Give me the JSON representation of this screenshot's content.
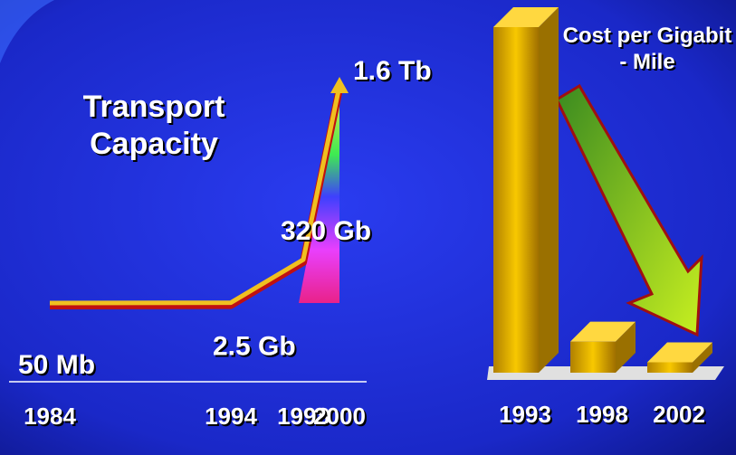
{
  "chart_data": [
    {
      "type": "line",
      "title": "Transport Capacity",
      "x": [
        1984,
        1994,
        1998,
        2000
      ],
      "xlim": [
        1984,
        2000
      ],
      "values": [
        50,
        2500,
        320000,
        1600000
      ],
      "value_labels": [
        "50 Mb",
        "2.5 Gb",
        "320 Gb",
        "1.6 Tb"
      ],
      "ylim": [
        0,
        1600000
      ],
      "color": "#f0c020"
    },
    {
      "type": "bar",
      "title": "Cost per Gigabit - Mile",
      "categories": [
        "1993",
        "1998",
        "2002"
      ],
      "values": [
        100,
        9,
        3
      ],
      "ylim": [
        0,
        100
      ],
      "color": "#e0a800"
    }
  ]
}
